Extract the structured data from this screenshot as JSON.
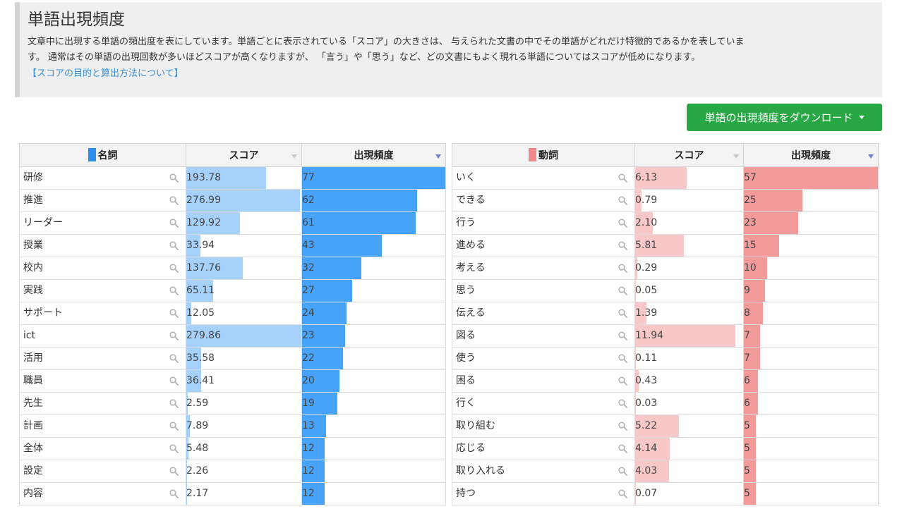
{
  "info": {
    "title": "単語出現頻度",
    "desc_line1": "文章中に出現する単語の頻出度を表にしています。単語ごとに表示されている「スコア」の大きさは、 与えられた文書の中でその単語がどれだけ特徴的であるかを表していま",
    "desc_line2": "す。 通常はその単語の出現回数が多いほどスコアが高くなりますが、 「言う」や「思う」など、どの文書にもよく現れる単語についてはスコアが低めになります。",
    "link": "【スコアの目的と算出方法について】"
  },
  "download_button": "単語の出現頻度をダウンロード",
  "colors": {
    "noun_swatch": "#2c8ef0",
    "noun_score_bar": "#a6d1fb",
    "noun_freq_bar": "#47a3fa",
    "verb_swatch": "#f08a8a",
    "verb_score_bar": "#f8c8c8",
    "verb_freq_bar": "#f39a9a",
    "button": "#27a844",
    "link": "#3a8fd6",
    "sort_active": "#6f7fd6"
  },
  "icons": {
    "search": "search-icon",
    "sort": "sort-triangle-icon"
  },
  "nouns": {
    "header_word": "名詞",
    "header_score": "スコア",
    "header_freq": "出現頻度",
    "score_max": 279.86,
    "freq_max": 77,
    "rows": [
      {
        "word": "研修",
        "score": "193.78",
        "freq": "77"
      },
      {
        "word": "推進",
        "score": "276.99",
        "freq": "62"
      },
      {
        "word": "リーダー",
        "score": "129.92",
        "freq": "61"
      },
      {
        "word": "授業",
        "score": "33.94",
        "freq": "43"
      },
      {
        "word": "校内",
        "score": "137.76",
        "freq": "32"
      },
      {
        "word": "実践",
        "score": "65.11",
        "freq": "27"
      },
      {
        "word": "サポート",
        "score": "12.05",
        "freq": "24"
      },
      {
        "word": "ict",
        "score": "279.86",
        "freq": "23"
      },
      {
        "word": "活用",
        "score": "35.58",
        "freq": "22"
      },
      {
        "word": "職員",
        "score": "36.41",
        "freq": "20"
      },
      {
        "word": "先生",
        "score": "2.59",
        "freq": "19"
      },
      {
        "word": "計画",
        "score": "7.89",
        "freq": "13"
      },
      {
        "word": "全体",
        "score": "5.48",
        "freq": "12"
      },
      {
        "word": "設定",
        "score": "2.26",
        "freq": "12"
      },
      {
        "word": "内容",
        "score": "2.17",
        "freq": "12"
      }
    ]
  },
  "verbs": {
    "header_word": "動詞",
    "header_score": "スコア",
    "header_freq": "出現頻度",
    "score_max": 12.9,
    "freq_max": 57,
    "rows": [
      {
        "word": "いく",
        "score": "6.13",
        "freq": "57"
      },
      {
        "word": "できる",
        "score": "0.79",
        "freq": "25"
      },
      {
        "word": "行う",
        "score": "2.10",
        "freq": "23"
      },
      {
        "word": "進める",
        "score": "5.81",
        "freq": "15"
      },
      {
        "word": "考える",
        "score": "0.29",
        "freq": "10"
      },
      {
        "word": "思う",
        "score": "0.05",
        "freq": "9"
      },
      {
        "word": "伝える",
        "score": "1.39",
        "freq": "8"
      },
      {
        "word": "図る",
        "score": "11.94",
        "freq": "7"
      },
      {
        "word": "使う",
        "score": "0.11",
        "freq": "7"
      },
      {
        "word": "困る",
        "score": "0.43",
        "freq": "6"
      },
      {
        "word": "行く",
        "score": "0.03",
        "freq": "6"
      },
      {
        "word": "取り組む",
        "score": "5.22",
        "freq": "5"
      },
      {
        "word": "応じる",
        "score": "4.14",
        "freq": "5"
      },
      {
        "word": "取り入れる",
        "score": "4.03",
        "freq": "5"
      },
      {
        "word": "持つ",
        "score": "0.07",
        "freq": "5"
      }
    ]
  }
}
